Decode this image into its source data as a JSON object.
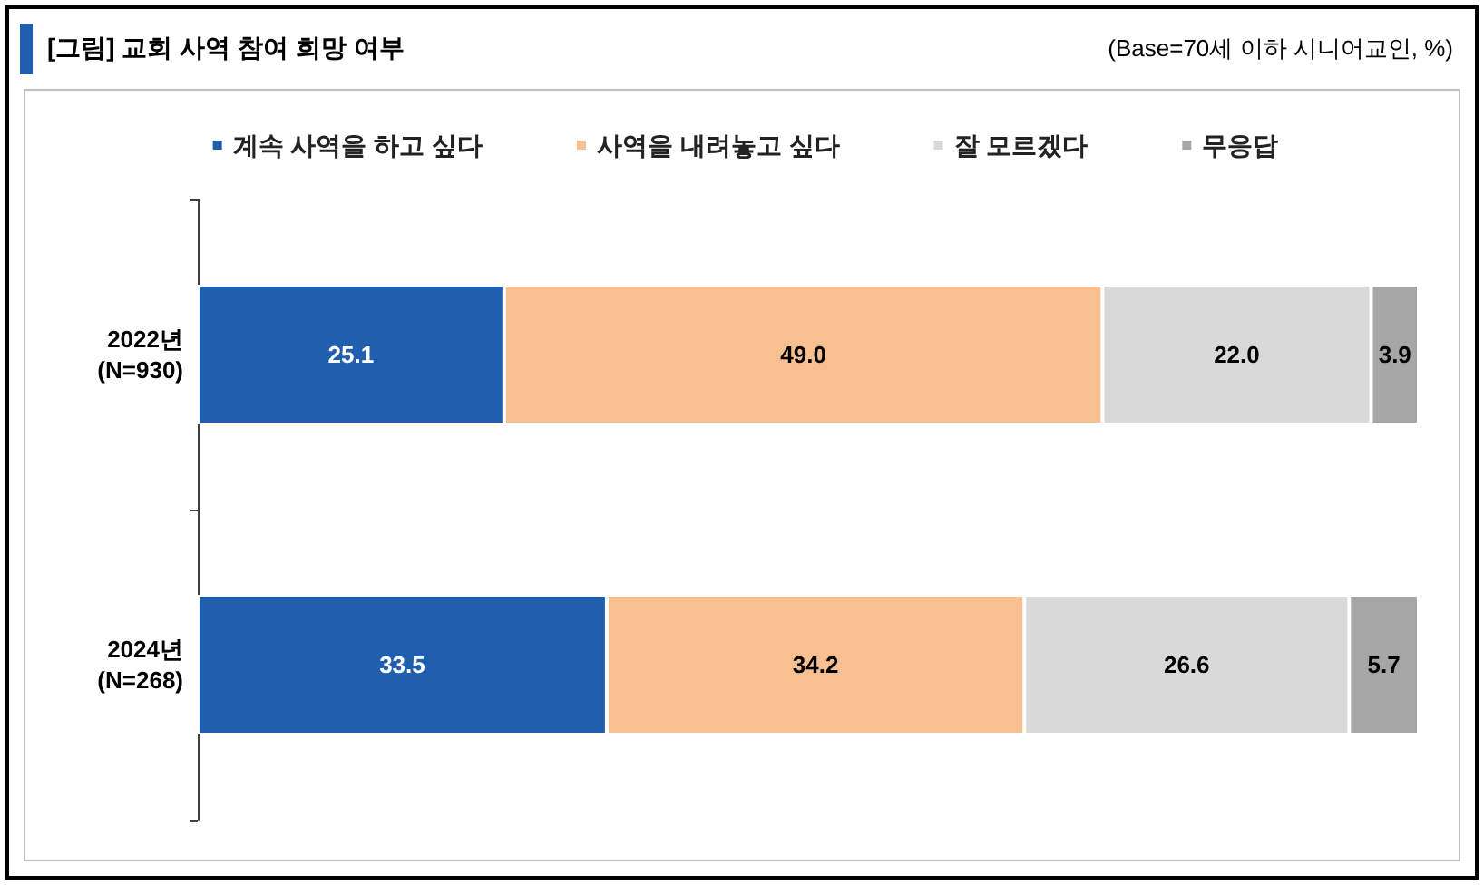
{
  "chart_data": {
    "type": "bar",
    "orientation": "horizontal",
    "stacked": true,
    "title": "[그림] 교회 사역 참여 희망 여부",
    "subtitle": "(Base=70세 이하 시니어교인, %)",
    "categories": [
      "2022년\n(N=930)",
      "2024년\n(N=268)"
    ],
    "series": [
      {
        "name": "계속 사역을 하고 싶다",
        "color": "#1f5fad",
        "values": [
          25.1,
          33.5
        ]
      },
      {
        "name": "사역을 내려놓고 싶다",
        "color": "#f8bf91",
        "values": [
          49.0,
          34.2
        ],
        "value_labels": [
          "49.0",
          "34.2"
        ]
      },
      {
        "name": "잘 모르겠다",
        "color": "#d9d9d9",
        "values": [
          22.0,
          26.6
        ],
        "value_labels": [
          "22.0",
          "26.6"
        ]
      },
      {
        "name": "무응답",
        "color": "#a6a6a6",
        "values": [
          3.9,
          5.7
        ]
      }
    ],
    "data_labels": true,
    "legend": "top",
    "grid": false
  }
}
